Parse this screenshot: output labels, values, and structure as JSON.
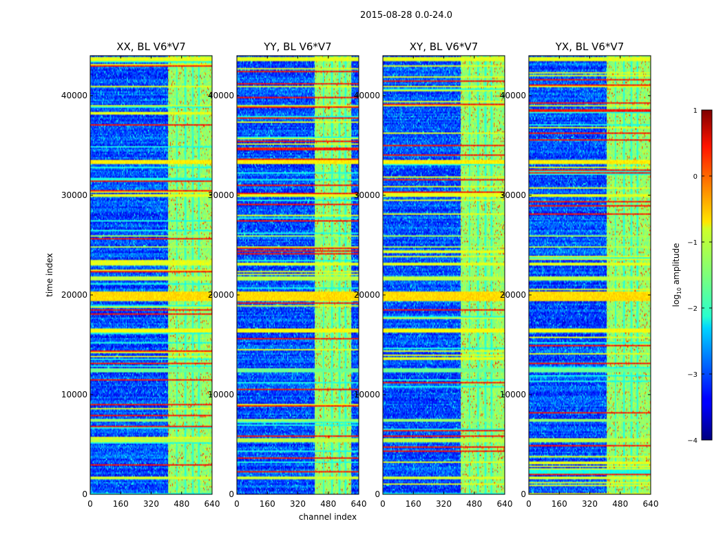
{
  "chart_data": {
    "type": "heatmap",
    "suptitle": "2015-08-28 0.0-24.0",
    "xlabel": "channel index",
    "ylabel": "time index",
    "xlim": [
      0,
      640
    ],
    "ylim": [
      0,
      44000
    ],
    "x_ticks": [
      0,
      160,
      320,
      480,
      640
    ],
    "y_ticks": [
      0,
      10000,
      20000,
      30000,
      40000
    ],
    "grid": false,
    "colormap": "jet",
    "colorbar": {
      "label_base": "log",
      "label_sub": "10",
      "label_rest": " amplitude",
      "range": [
        -4,
        1
      ],
      "ticks": [
        1,
        0,
        -1,
        -2,
        -3,
        -4
      ],
      "tick_labels": [
        "1",
        "0",
        "−1",
        "−2",
        "−3",
        "−4"
      ]
    },
    "panels": [
      {
        "title": "XX, BL V6*V7",
        "polarization": "XX"
      },
      {
        "title": "YY, BL V6*V7",
        "polarization": "YY"
      },
      {
        "title": "XY, BL V6*V7",
        "polarization": "XY"
      },
      {
        "title": "YX, BL V6*V7",
        "polarization": "YX"
      }
    ],
    "rfi_band_channels": [
      410,
      640
    ],
    "rfi_band_channels_yy": [
      410,
      600
    ],
    "vertical_channel_gaps": [
      455,
      500,
      540,
      570
    ],
    "flagged_time_bands": [
      {
        "t0": 19400,
        "t1": 20400,
        "level": -0.7
      },
      {
        "t0": 33200,
        "t1": 33600,
        "level": -0.8
      },
      {
        "t0": 43500,
        "t1": 43800,
        "level": -1.0
      },
      {
        "t0": 40800,
        "t1": 41000,
        "level": -1.0
      },
      {
        "t0": 16200,
        "t1": 16600,
        "level": -0.9
      },
      {
        "t0": 5200,
        "t1": 5600,
        "level": -1.2
      },
      {
        "t0": 1500,
        "t1": 1800,
        "level": -1.1
      },
      {
        "t0": 23000,
        "t1": 23300,
        "level": -1.0
      },
      {
        "t0": 21500,
        "t1": 21800,
        "level": -1.2
      },
      {
        "t0": 29800,
        "t1": 30100,
        "level": -1.0
      },
      {
        "t0": 38900,
        "t1": 39100,
        "level": -1.1
      },
      {
        "t0": 24700,
        "t1": 24900,
        "level": -1.2
      },
      {
        "t0": 12200,
        "t1": 12600,
        "level": -1.6
      },
      {
        "t0": 7300,
        "t1": 7600,
        "level": -1.4
      },
      {
        "t0": 25800,
        "t1": 26000,
        "level": -1.3
      }
    ]
  }
}
